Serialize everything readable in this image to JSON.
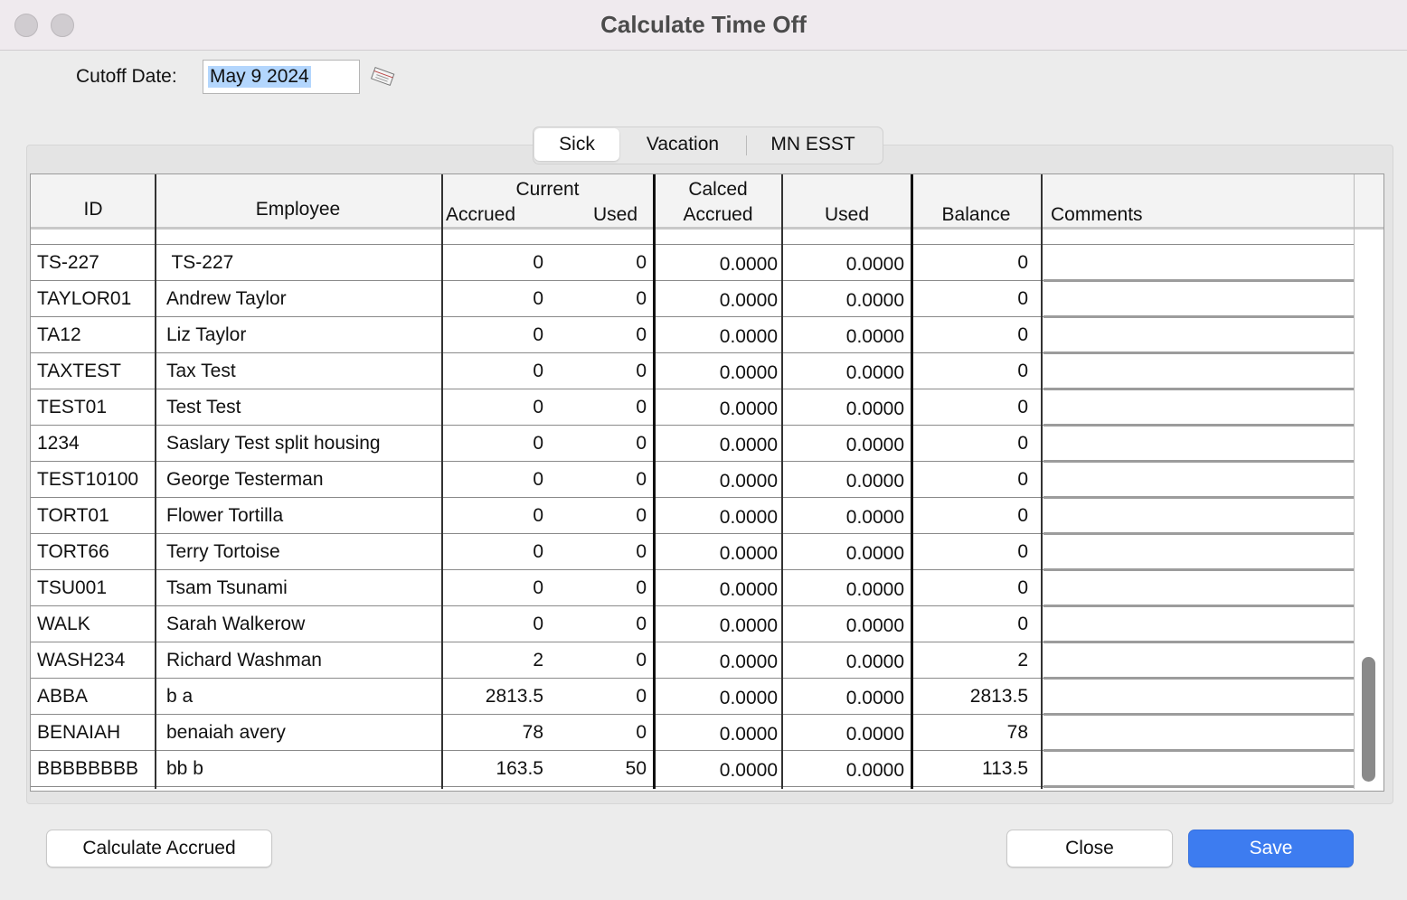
{
  "window": {
    "title": "Calculate Time Off"
  },
  "cutoff": {
    "label": "Cutoff Date:",
    "value": "May 9 2024"
  },
  "tabs": [
    "Sick",
    "Vacation",
    "MN ESST"
  ],
  "table": {
    "groups": [
      "Current",
      "Calced"
    ],
    "columns": [
      "ID",
      "Employee",
      "Accrued",
      "Used",
      "Accrued",
      "Used",
      "Balance",
      "Comments"
    ],
    "rows": [
      [
        "TS-227",
        " TS-227",
        "0",
        "0",
        "0.0000",
        "0.0000",
        "0"
      ],
      [
        "TAYLOR01",
        "Andrew Taylor",
        "0",
        "0",
        "0.0000",
        "0.0000",
        "0"
      ],
      [
        "TA12",
        "Liz Taylor",
        "0",
        "0",
        "0.0000",
        "0.0000",
        "0"
      ],
      [
        "TAXTEST",
        "Tax Test",
        "0",
        "0",
        "0.0000",
        "0.0000",
        "0"
      ],
      [
        "TEST01",
        "Test Test",
        "0",
        "0",
        "0.0000",
        "0.0000",
        "0"
      ],
      [
        "1234",
        "Saslary Test split housing",
        "0",
        "0",
        "0.0000",
        "0.0000",
        "0"
      ],
      [
        "TEST10100",
        "George Testerman",
        "0",
        "0",
        "0.0000",
        "0.0000",
        "0"
      ],
      [
        "TORT01",
        "Flower Tortilla",
        "0",
        "0",
        "0.0000",
        "0.0000",
        "0"
      ],
      [
        "TORT66",
        "Terry Tortoise",
        "0",
        "0",
        "0.0000",
        "0.0000",
        "0"
      ],
      [
        "TSU001",
        "Tsam Tsunami",
        "0",
        "0",
        "0.0000",
        "0.0000",
        "0"
      ],
      [
        "WALK",
        "Sarah Walkerow",
        "0",
        "0",
        "0.0000",
        "0.0000",
        "0"
      ],
      [
        "WASH234",
        "Richard Washman",
        "2",
        "0",
        "0.0000",
        "0.0000",
        "2"
      ],
      [
        "ABBA",
        "b a",
        "2813.5",
        "0",
        "0.0000",
        "0.0000",
        "2813.5"
      ],
      [
        "BENAIAH",
        "benaiah avery",
        "78",
        "0",
        "0.0000",
        "0.0000",
        "78"
      ],
      [
        "BBBBBBBB",
        "bb b",
        "163.5",
        "50",
        "0.0000",
        "0.0000",
        "113.5"
      ]
    ]
  },
  "buttons": {
    "calculate": "Calculate Accrued",
    "close": "Close",
    "save": "Save"
  }
}
